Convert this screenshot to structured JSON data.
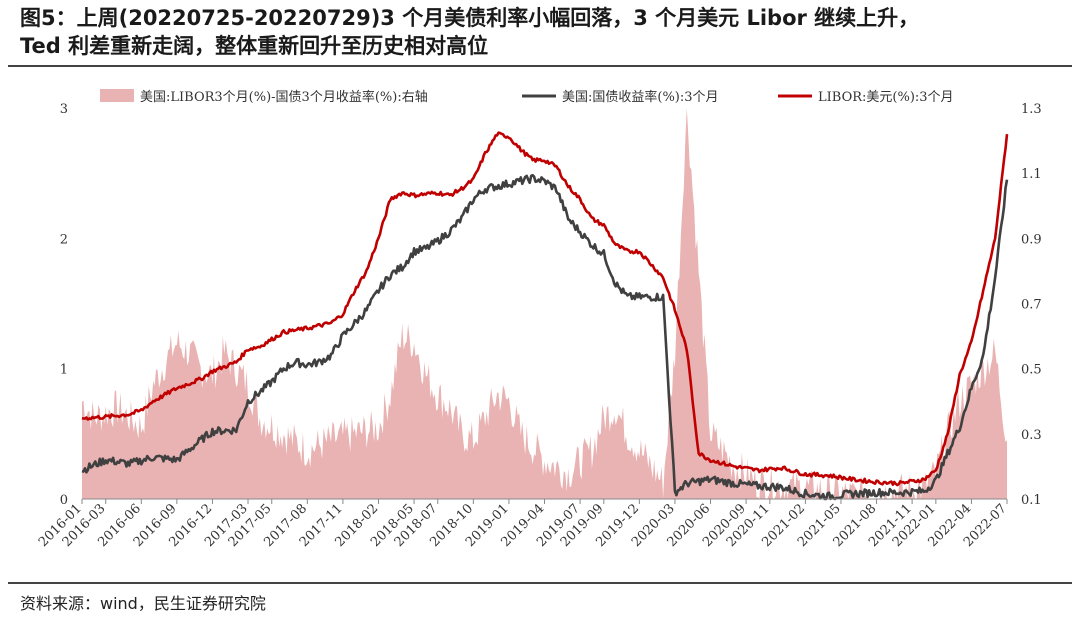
{
  "header": {
    "title_line1": "图5：上周(20220725-20220729)3 个月美债利率小幅回落，3 个月美元 Libor 继续上升，",
    "title_line2": "Ted 利差重新走阔，整体重新回升至历史相对高位"
  },
  "footer": {
    "source": "资料来源：wind，民生证券研究院"
  },
  "colors": {
    "spread": "#e9b3b3",
    "treasury": "#404040",
    "libor": "#c00000"
  },
  "chart_data": {
    "type": "line",
    "legend": {
      "placement": "top"
    },
    "grid": false,
    "left_axis": {
      "range": [
        0,
        3
      ],
      "ticks": [
        "0",
        "1",
        "2",
        "3"
      ]
    },
    "right_axis": {
      "range": [
        0.1,
        1.3
      ],
      "ticks": [
        "0.1",
        "0.3",
        "0.5",
        "0.7",
        "0.9",
        "1.1",
        "1.3"
      ]
    },
    "x_ticks": [
      "2016-01",
      "2016-03",
      "2016-06",
      "2016-09",
      "2016-12",
      "2017-03",
      "2017-05",
      "2017-08",
      "2017-11",
      "2018-02",
      "2018-05",
      "2018-07",
      "2018-10",
      "2019-01",
      "2019-04",
      "2019-07",
      "2019-09",
      "2019-12",
      "2020-03",
      "2020-06",
      "2020-09",
      "2020-11",
      "2021-02",
      "2021-05",
      "2021-08",
      "2021-11",
      "2022-01",
      "2022-04",
      "2022-07"
    ],
    "series": [
      {
        "name": "美国:LIBOR3个月(%)-国债3个月收益率(%):右轴",
        "type": "area",
        "axis": "right",
        "x": [
          "2016-01",
          "2016-02",
          "2016-04",
          "2016-06",
          "2016-07",
          "2016-08",
          "2016-09",
          "2016-10",
          "2016-11",
          "2016-12",
          "2017-01",
          "2017-02",
          "2017-03",
          "2017-04",
          "2017-06",
          "2017-08",
          "2017-10",
          "2017-12",
          "2018-02",
          "2018-03",
          "2018-04",
          "2018-05",
          "2018-06",
          "2018-07",
          "2018-08",
          "2018-09",
          "2018-10",
          "2018-11",
          "2018-12",
          "2019-01",
          "2019-02",
          "2019-04",
          "2019-06",
          "2019-08",
          "2019-09",
          "2019-10",
          "2019-11",
          "2019-12",
          "2020-01",
          "2020-02",
          "2020-03",
          "2020-04",
          "2020-05",
          "2020-06",
          "2020-08",
          "2020-10",
          "2020-12",
          "2021-03",
          "2021-06",
          "2021-09",
          "2021-12",
          "2022-01",
          "2022-02",
          "2022-03",
          "2022-04",
          "2022-05",
          "2022-06",
          "2022-07"
        ],
        "values": [
          0.4,
          0.35,
          0.38,
          0.32,
          0.45,
          0.52,
          0.58,
          0.55,
          0.5,
          0.48,
          0.55,
          0.5,
          0.45,
          0.35,
          0.3,
          0.25,
          0.28,
          0.3,
          0.32,
          0.42,
          0.6,
          0.58,
          0.48,
          0.42,
          0.38,
          0.3,
          0.28,
          0.35,
          0.42,
          0.4,
          0.3,
          0.22,
          0.18,
          0.25,
          0.35,
          0.38,
          0.3,
          0.25,
          0.2,
          0.15,
          0.55,
          1.3,
          0.8,
          0.3,
          0.2,
          0.15,
          0.14,
          0.13,
          0.11,
          0.12,
          0.13,
          0.18,
          0.3,
          0.4,
          0.45,
          0.5,
          0.55,
          0.28
        ]
      },
      {
        "name": "美国:国债收益率(%):3个月",
        "type": "line",
        "axis": "left",
        "x": [
          "2016-01",
          "2016-03",
          "2016-05",
          "2016-07",
          "2016-09",
          "2016-11",
          "2016-12",
          "2017-02",
          "2017-03",
          "2017-04",
          "2017-05",
          "2017-06",
          "2017-07",
          "2017-08",
          "2017-09",
          "2017-10",
          "2017-11",
          "2017-12",
          "2018-01",
          "2018-02",
          "2018-03",
          "2018-04",
          "2018-05",
          "2018-06",
          "2018-07",
          "2018-08",
          "2018-09",
          "2018-10",
          "2018-11",
          "2018-12",
          "2019-01",
          "2019-02",
          "2019-03",
          "2019-04",
          "2019-05",
          "2019-06",
          "2019-07",
          "2019-08",
          "2019-09",
          "2019-10",
          "2019-11",
          "2019-12",
          "2020-01",
          "2020-02",
          "2020-03",
          "2020-04",
          "2020-06",
          "2020-08",
          "2020-10",
          "2020-12",
          "2021-02",
          "2021-04",
          "2021-06",
          "2021-08",
          "2021-10",
          "2021-12",
          "2022-01",
          "2022-02",
          "2022-03",
          "2022-04",
          "2022-05",
          "2022-06",
          "2022-07"
        ],
        "values": [
          0.22,
          0.3,
          0.27,
          0.32,
          0.3,
          0.45,
          0.52,
          0.53,
          0.75,
          0.82,
          0.9,
          1.0,
          1.05,
          1.03,
          1.05,
          1.1,
          1.25,
          1.35,
          1.45,
          1.6,
          1.72,
          1.78,
          1.9,
          1.92,
          1.98,
          2.05,
          2.15,
          2.3,
          2.38,
          2.4,
          2.42,
          2.44,
          2.46,
          2.44,
          2.38,
          2.15,
          2.05,
          1.95,
          1.88,
          1.65,
          1.55,
          1.55,
          1.55,
          1.55,
          0.05,
          0.12,
          0.15,
          0.12,
          0.1,
          0.09,
          0.04,
          0.02,
          0.04,
          0.05,
          0.05,
          0.06,
          0.14,
          0.35,
          0.55,
          0.85,
          1.1,
          1.7,
          2.45
        ]
      },
      {
        "name": "LIBOR:美元(%):3个月",
        "type": "line",
        "axis": "left",
        "x": [
          "2016-01",
          "2016-03",
          "2016-05",
          "2016-06",
          "2016-07",
          "2016-09",
          "2016-11",
          "2016-12",
          "2017-02",
          "2017-03",
          "2017-04",
          "2017-06",
          "2017-08",
          "2017-10",
          "2017-11",
          "2017-12",
          "2018-01",
          "2018-02",
          "2018-03",
          "2018-04",
          "2018-05",
          "2018-06",
          "2018-07",
          "2018-08",
          "2018-09",
          "2018-10",
          "2018-11",
          "2018-12",
          "2019-01",
          "2019-02",
          "2019-03",
          "2019-04",
          "2019-05",
          "2019-06",
          "2019-07",
          "2019-08",
          "2019-09",
          "2019-10",
          "2019-11",
          "2019-12",
          "2020-01",
          "2020-02",
          "2020-03",
          "2020-04",
          "2020-05",
          "2020-06",
          "2020-08",
          "2020-10",
          "2020-12",
          "2021-02",
          "2021-04",
          "2021-06",
          "2021-08",
          "2021-10",
          "2021-12",
          "2022-01",
          "2022-02",
          "2022-03",
          "2022-04",
          "2022-05",
          "2022-06",
          "2022-07"
        ],
        "values": [
          0.62,
          0.63,
          0.65,
          0.68,
          0.75,
          0.85,
          0.92,
          0.98,
          1.05,
          1.15,
          1.17,
          1.28,
          1.31,
          1.35,
          1.42,
          1.6,
          1.75,
          2.0,
          2.3,
          2.35,
          2.33,
          2.34,
          2.35,
          2.33,
          2.38,
          2.45,
          2.65,
          2.8,
          2.78,
          2.68,
          2.6,
          2.6,
          2.55,
          2.4,
          2.3,
          2.15,
          2.1,
          1.95,
          1.9,
          1.9,
          1.8,
          1.7,
          1.45,
          1.15,
          0.35,
          0.3,
          0.25,
          0.22,
          0.24,
          0.19,
          0.18,
          0.15,
          0.13,
          0.12,
          0.15,
          0.22,
          0.5,
          0.95,
          1.2,
          1.6,
          2.0,
          2.8
        ]
      }
    ]
  }
}
